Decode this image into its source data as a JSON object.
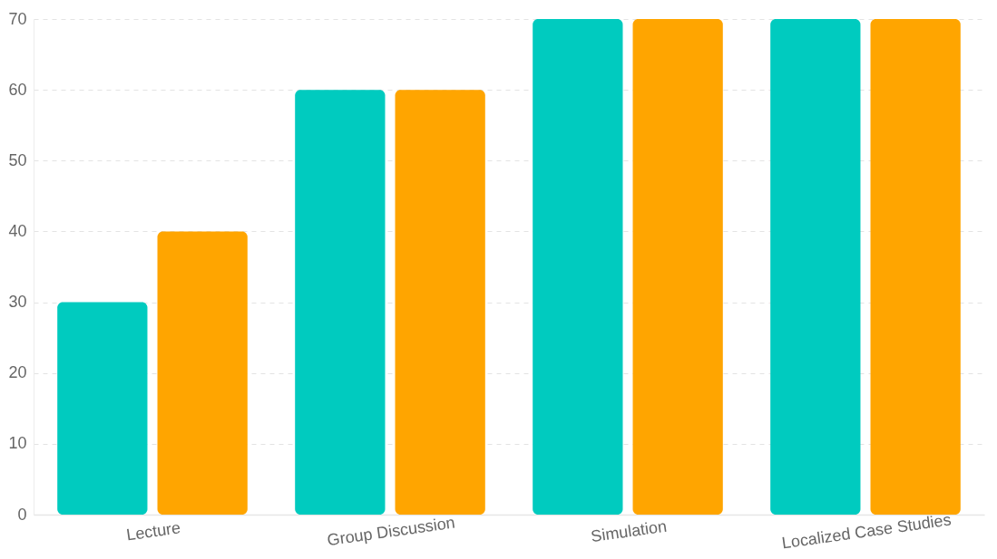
{
  "chart_data": {
    "type": "bar",
    "categories": [
      "Lecture",
      "Group Discussion",
      "Simulation",
      "Localized Case Studies"
    ],
    "series": [
      {
        "color": "#00cbbf",
        "values": [
          30,
          60,
          70,
          70
        ]
      },
      {
        "color": "#ffa500",
        "values": [
          40,
          60,
          70,
          70
        ]
      }
    ],
    "ylim": [
      0,
      70
    ],
    "yticks": [
      0,
      10,
      20,
      30,
      40,
      50,
      60,
      70
    ],
    "grid": "y",
    "legend": false
  }
}
